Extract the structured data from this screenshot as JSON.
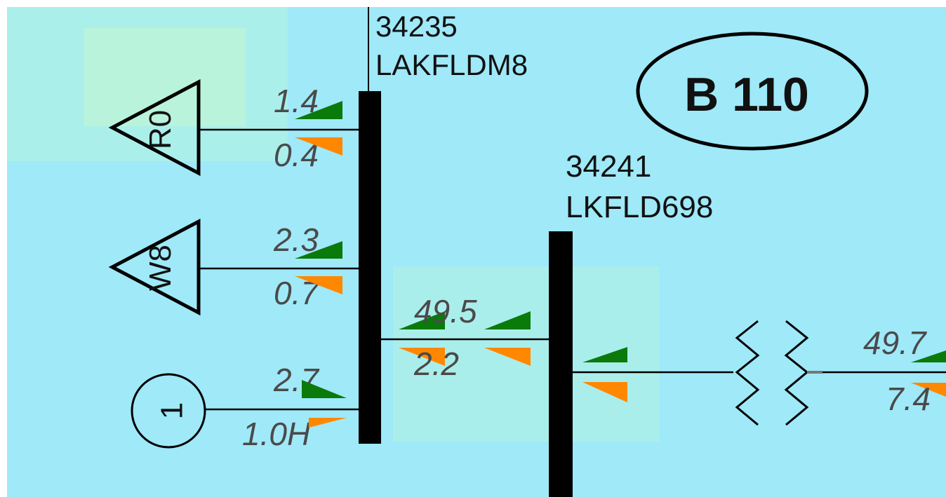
{
  "colors": {
    "background": "#9fe9f8",
    "bus": "#000000",
    "mw_arrow": "#0a7a0a",
    "mvar_arrow": "#ff8800",
    "flow_text": "#4a4a4a"
  },
  "buses": [
    {
      "id": "bus-34235",
      "number": "34235",
      "name": "LAKFLDM8"
    },
    {
      "id": "bus-34241",
      "number": "34241",
      "name": "LKFLD698"
    }
  ],
  "area_badge": "B 110",
  "loads": [
    {
      "id": "R0",
      "label": "R0",
      "mw": "1.4",
      "mvar": "0.4"
    },
    {
      "id": "W8",
      "label": "W8",
      "mw": "2.3",
      "mvar": "0.7"
    }
  ],
  "generator": {
    "label": "1",
    "mw": "2.7",
    "mvar": "1.0H"
  },
  "branches": {
    "bus_tie": {
      "mw": "49.5",
      "mvar": "2.2"
    },
    "transformer": {
      "mw": "49.7",
      "mvar": "7.4"
    }
  },
  "icons": {
    "load": "triangle-load-icon",
    "generator": "circle-generator-icon",
    "transformer": "zigzag-transformer-icon",
    "flow_mw": "green-flow-arrow-icon",
    "flow_mvar": "orange-flow-arrow-icon"
  }
}
